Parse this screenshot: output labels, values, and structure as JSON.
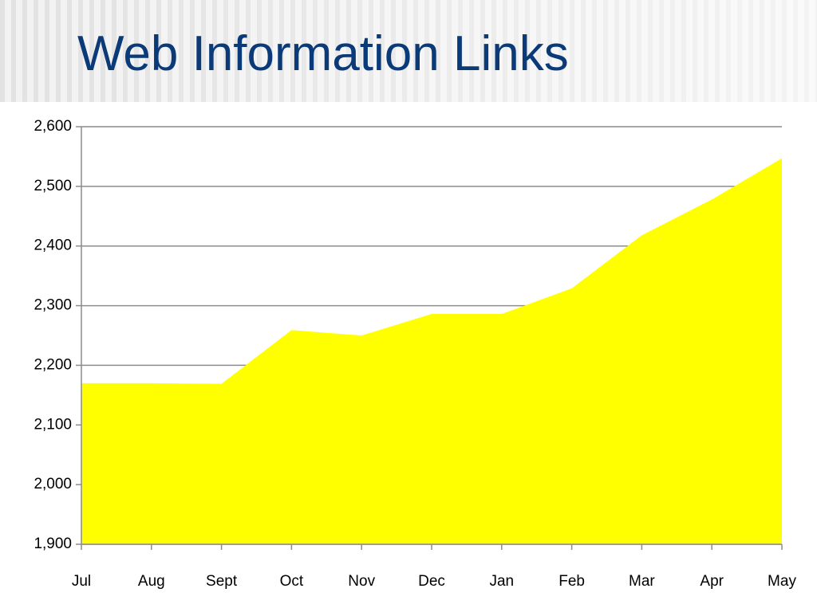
{
  "chart_data": {
    "type": "area",
    "title": "Web Information Links",
    "categories": [
      "Jul",
      "Aug",
      "Sept",
      "Oct",
      "Nov",
      "Dec",
      "Jan",
      "Feb",
      "Mar",
      "Apr",
      "May"
    ],
    "values": [
      2170,
      2170,
      2169,
      2259,
      2250,
      2286,
      2286,
      2329,
      2418,
      2478,
      2547
    ],
    "color": "#ffff00",
    "ylim": [
      1900,
      2600
    ],
    "yticks": [
      {
        "value": 1900,
        "label": "1,900"
      },
      {
        "value": 2000,
        "label": "2,000"
      },
      {
        "value": 2100,
        "label": "2,100"
      },
      {
        "value": 2200,
        "label": "2,200"
      },
      {
        "value": 2300,
        "label": "2,300"
      },
      {
        "value": 2400,
        "label": "2,400"
      },
      {
        "value": 2500,
        "label": "2,500"
      },
      {
        "value": 2600,
        "label": "2,600"
      }
    ],
    "grid": true
  }
}
